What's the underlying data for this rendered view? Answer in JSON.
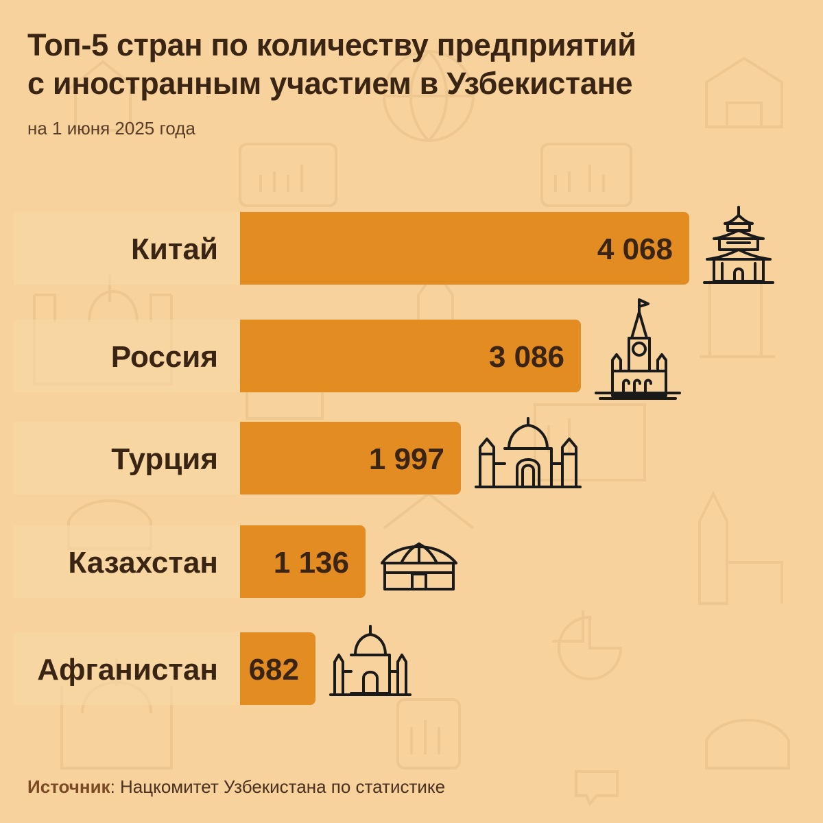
{
  "header": {
    "title_line1": "Топ-5 стран по количеству предприятий",
    "title_line2": "с иностранным участием в Узбекистане",
    "subtitle": "на 1 июня 2025 года"
  },
  "chart_data": {
    "type": "bar",
    "orientation": "horizontal",
    "title": "Топ-5 стран по количеству предприятий с иностранным участием в Узбекистане",
    "subtitle": "на 1 июня 2025 года",
    "categories": [
      "Китай",
      "Россия",
      "Турция",
      "Казахстан",
      "Афганистан"
    ],
    "values": [
      4068,
      3086,
      1997,
      1136,
      682
    ],
    "value_labels": [
      "4 068",
      "3 086",
      "1 997",
      "1 136",
      "682"
    ],
    "icons": [
      "pagoda-icon",
      "kremlin-tower-icon",
      "mosque-icon",
      "yurt-icon",
      "mosque-small-icon"
    ],
    "xlim": [
      0,
      4068
    ],
    "grid": false,
    "legend": "none"
  },
  "source": {
    "label": "Источник",
    "text": "Нацкомитет Узбекистана по статистике"
  },
  "colors": {
    "background": "#f7d29c",
    "bar": "#e38c22",
    "row_band": "#fad8a6",
    "text_dark": "#3a2413",
    "icon_stroke": "#1a1a1a",
    "watermark": "#e8c08a"
  }
}
